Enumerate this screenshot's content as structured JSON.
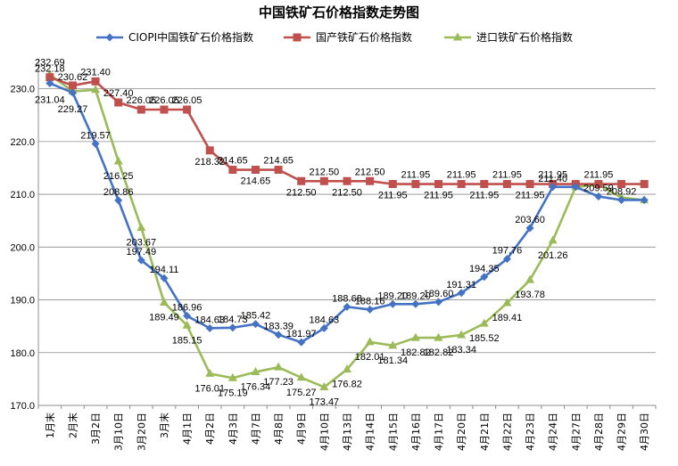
{
  "chart_data": {
    "type": "line",
    "title": "中国铁矿石价格指数走势图",
    "xlabel": "",
    "ylabel": "",
    "ylim": [
      170.0,
      235.0
    ],
    "yticks": [
      "170.0",
      "180.0",
      "190.0",
      "200.0",
      "210.0",
      "220.0",
      "230.0"
    ],
    "grid": true,
    "legend_position": "top",
    "categories": [
      "1月末",
      "2月末",
      "3月2日",
      "3月10日",
      "3月20日",
      "3月末",
      "4月1日",
      "4月2日",
      "4月3日",
      "4月7日",
      "4月8日",
      "4月9日",
      "4月10日",
      "4月13日",
      "4月14日",
      "4月15日",
      "4月16日",
      "4月17日",
      "4月20日",
      "4月21日",
      "4月22日",
      "4月23日",
      "4月24日",
      "4月27日",
      "4月28日",
      "4月29日",
      "4月30日"
    ],
    "series": [
      {
        "name": "CIOPI中国铁矿石价格指数",
        "color": "#4472C4",
        "marker": "diamond",
        "values": [
          231.04,
          229.27,
          219.57,
          208.86,
          197.49,
          194.11,
          186.96,
          184.63,
          184.73,
          185.42,
          183.39,
          181.97,
          184.63,
          188.68,
          188.16,
          189.2,
          189.2,
          189.6,
          191.31,
          194.35,
          197.76,
          203.6,
          211.4,
          211.4,
          209.59,
          208.92,
          208.92
        ],
        "labels": [
          "231.04",
          "229.27",
          "219.57",
          "208.86",
          "197.49",
          "194.11",
          "186.96",
          "184.63",
          "184.73",
          "185.42",
          "183.39",
          "181.97",
          "184.63",
          "188.68",
          "188.16",
          "189.20",
          "189.20",
          "189.60",
          "191.31",
          "194.35",
          "197.76",
          "203.60",
          "211.40",
          "",
          "209.59",
          "208.92",
          ""
        ]
      },
      {
        "name": "国产铁矿石价格指数",
        "color": "#C0504D",
        "marker": "square",
        "values": [
          232.18,
          230.62,
          231.4,
          227.4,
          226.05,
          226.05,
          226.05,
          218.32,
          214.65,
          214.65,
          214.65,
          212.5,
          212.5,
          212.5,
          212.5,
          211.95,
          211.95,
          211.95,
          211.95,
          211.95,
          211.95,
          211.95,
          211.95,
          211.95,
          211.95,
          211.95,
          211.95
        ],
        "labels": [
          "232.18",
          "230.62",
          "231.40",
          "227.40",
          "226.05",
          "226.05",
          "226.05",
          "218.32",
          "214.65",
          "214.65",
          "214.65",
          "212.50",
          "212.50",
          "212.50",
          "212.50",
          "211.95",
          "211.95",
          "211.95",
          "211.95",
          "211.95",
          "211.95",
          "211.95",
          "211.95",
          "",
          "211.95",
          "",
          ""
        ]
      },
      {
        "name": "进口铁矿石价格指数",
        "color": "#9BBB59",
        "marker": "triangle",
        "values": [
          232.69,
          229.5,
          229.8,
          216.25,
          203.67,
          189.49,
          185.15,
          176.01,
          175.19,
          176.34,
          177.23,
          175.27,
          173.47,
          176.82,
          182.01,
          181.34,
          182.82,
          182.82,
          183.34,
          185.52,
          189.41,
          193.78,
          201.26,
          211.4,
          211.8,
          209.4,
          208.9
        ],
        "labels": [
          "232.69",
          "",
          "",
          "216.25",
          "203.67",
          "189.49",
          "185.15",
          "176.01",
          "175.19",
          "176.34",
          "177.23",
          "175.27",
          "173.47",
          "176.82",
          "182.01",
          "181.34",
          "182.82",
          "182.82",
          "183.34",
          "185.52",
          "189.41",
          "193.78",
          "201.26",
          "",
          "",
          "",
          ""
        ]
      }
    ]
  }
}
